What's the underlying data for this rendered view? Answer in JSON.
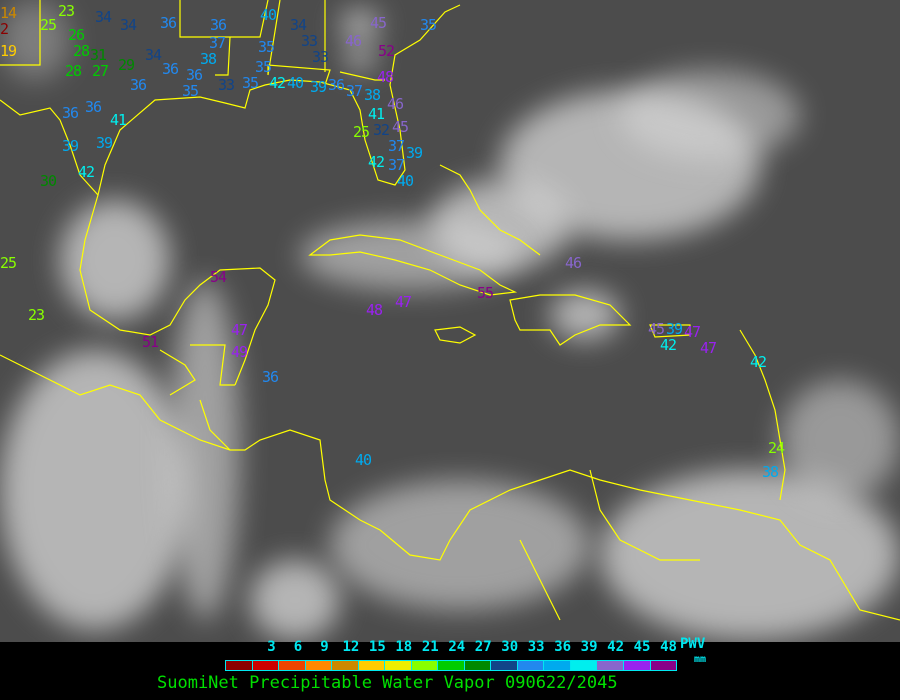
{
  "caption": "SuomiNet Precipitable Water Vapor 090622/2045",
  "legend": {
    "unit_label": "PWV",
    "unit": "mm",
    "ticks": [
      "3",
      "6",
      "9",
      "12",
      "15",
      "18",
      "21",
      "24",
      "27",
      "30",
      "33",
      "36",
      "39",
      "42",
      "45",
      "48"
    ],
    "colors": [
      "#8b0000",
      "#cc0000",
      "#ee4400",
      "#ff8800",
      "#cc8800",
      "#ffcc00",
      "#eeee00",
      "#88ff00",
      "#00cc00",
      "#008800",
      "#114488",
      "#2288ee",
      "#00aaee",
      "#00eeee",
      "#8866cc",
      "#9922ee",
      "#880088"
    ]
  },
  "coastline_color": "#ffff00",
  "stations": [
    "14",
    "2",
    "19",
    "23",
    "25",
    "26",
    "28",
    "31",
    "34",
    "34",
    "36",
    "36",
    "40",
    "34",
    "33",
    "35",
    "33",
    "28",
    "27",
    "29",
    "34",
    "35",
    "36",
    "38",
    "37",
    "35",
    "36",
    "33",
    "35",
    "36",
    "42",
    "40",
    "39",
    "36",
    "37",
    "38",
    "45",
    "46",
    "52",
    "35",
    "48",
    "46",
    "41",
    "45",
    "25",
    "32",
    "37",
    "39",
    "42",
    "37",
    "40",
    "36",
    "36",
    "41",
    "39",
    "39",
    "42",
    "30",
    "25",
    "23",
    "51",
    "54",
    "47",
    "49",
    "36",
    "40",
    "48",
    "47",
    "46",
    "55",
    "45",
    "39",
    "42",
    "47",
    "47",
    "42",
    "24",
    "38"
  ]
}
